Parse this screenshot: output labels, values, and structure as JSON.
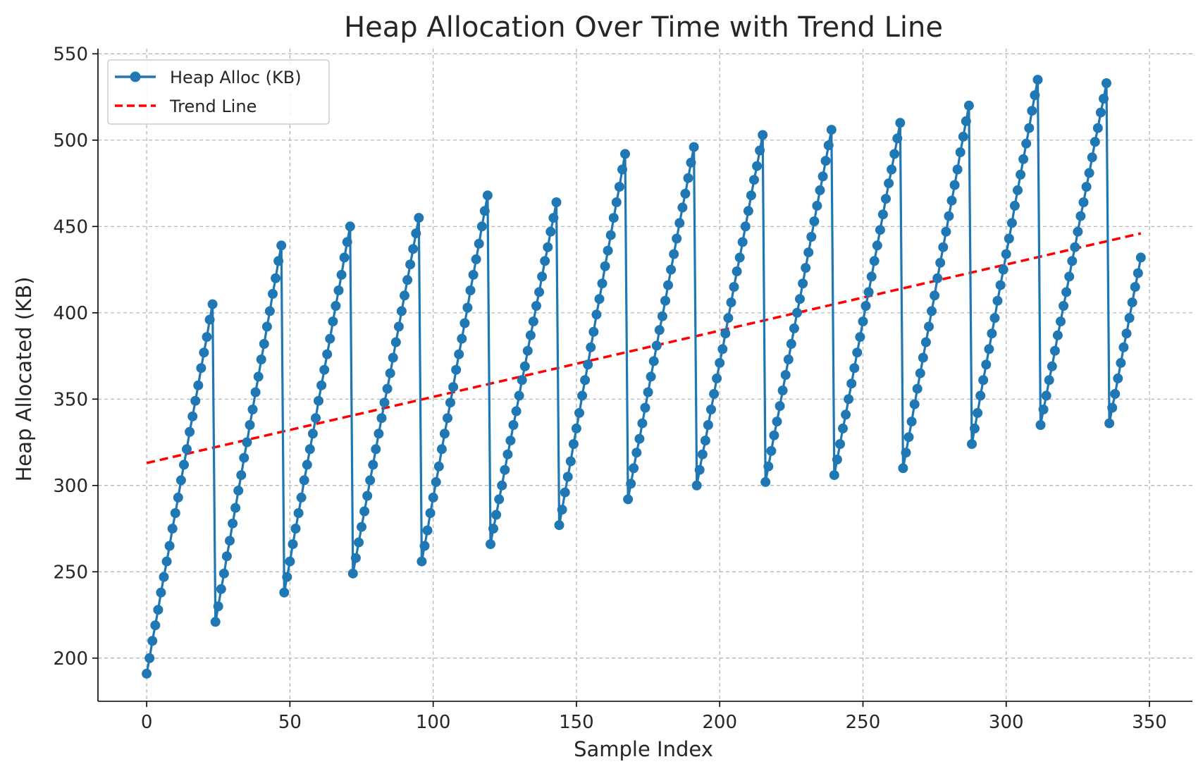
{
  "chart_data": {
    "type": "line",
    "title": "Heap Allocation Over Time with Trend Line",
    "xlabel": "Sample Index",
    "ylabel": "Heap Allocated (KB)",
    "xlim": [
      -17,
      365
    ],
    "ylim": [
      175,
      553
    ],
    "xticks": [
      0,
      50,
      100,
      150,
      200,
      250,
      300,
      350
    ],
    "yticks": [
      200,
      250,
      300,
      350,
      400,
      450,
      500,
      550
    ],
    "grid": true,
    "legend_position": "top-left",
    "series": [
      {
        "name": "Heap Alloc (KB)",
        "style": "line-with-markers",
        "color": "#1f77b4",
        "segments": [
          {
            "start": 191,
            "peak": 405,
            "length": 24
          },
          {
            "start": 221,
            "peak": 439,
            "length": 24
          },
          {
            "start": 238,
            "peak": 450,
            "length": 24
          },
          {
            "start": 249,
            "peak": 455,
            "length": 24
          },
          {
            "start": 256,
            "peak": 468,
            "length": 24
          },
          {
            "start": 266,
            "peak": 464,
            "length": 24
          },
          {
            "start": 277,
            "peak": 492,
            "length": 24
          },
          {
            "start": 292,
            "peak": 496,
            "length": 24
          },
          {
            "start": 300,
            "peak": 503,
            "length": 24
          },
          {
            "start": 302,
            "peak": 506,
            "length": 24
          },
          {
            "start": 306,
            "peak": 510,
            "length": 24
          },
          {
            "start": 310,
            "peak": 520,
            "length": 24
          },
          {
            "start": 324,
            "peak": 535,
            "length": 24
          },
          {
            "start": 335,
            "peak": 533,
            "length": 24
          },
          {
            "start": 336,
            "peak": 432,
            "length": 12
          }
        ]
      },
      {
        "name": "Trend Line",
        "style": "dashed",
        "color": "#ff0000",
        "x": [
          0,
          347
        ],
        "y": [
          313,
          446
        ]
      }
    ]
  }
}
